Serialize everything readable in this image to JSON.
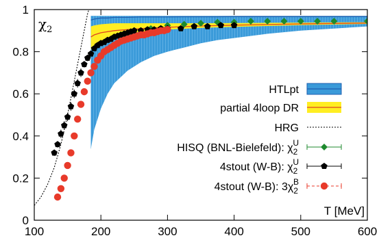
{
  "chart_data": {
    "type": "scatter",
    "panel_label": "χ2",
    "xlabel": "T [MeV]",
    "ylabel": "",
    "xlim": [
      100,
      600
    ],
    "ylim": [
      0,
      1
    ],
    "x_ticks": [
      100,
      200,
      300,
      400,
      500,
      600
    ],
    "y_ticks": [
      0,
      0.2,
      0.4,
      0.6,
      0.8,
      1
    ],
    "x_tick_labels": [
      "100",
      "200",
      "300",
      "400",
      "500",
      "600"
    ],
    "y_tick_labels": [
      "0",
      "0.2",
      "0.4",
      "0.6",
      "0.8",
      "1"
    ],
    "legend_position": "center-right",
    "series": [
      {
        "name": "HTLpt",
        "kind": "band",
        "fill": "#3a9ad9",
        "line": "#1f5fb0",
        "x": [
          185,
          190,
          200,
          210,
          220,
          240,
          260,
          280,
          300,
          325,
          350,
          375,
          400,
          450,
          500,
          550,
          600
        ],
        "upper": [
          0.97,
          0.97,
          0.97,
          0.97,
          0.97,
          0.97,
          0.97,
          0.97,
          0.97,
          0.97,
          0.97,
          0.97,
          0.97,
          0.97,
          0.97,
          0.97,
          0.97
        ],
        "lower": [
          0.34,
          0.43,
          0.53,
          0.6,
          0.65,
          0.71,
          0.75,
          0.78,
          0.8,
          0.82,
          0.84,
          0.855,
          0.865,
          0.885,
          0.9,
          0.91,
          0.92
        ],
        "central": [
          0.95,
          0.955,
          0.96,
          0.96,
          0.963,
          0.963,
          0.965,
          0.965,
          0.965,
          0.966,
          0.966,
          0.966,
          0.967,
          0.967,
          0.967,
          0.967,
          0.967
        ]
      },
      {
        "name": "partial 4loop DR",
        "kind": "band",
        "fill": "#ffee22",
        "line": "#dd4422",
        "x": [
          185,
          190,
          200,
          220,
          240,
          260,
          280,
          300,
          350,
          400,
          450,
          500,
          550,
          600
        ],
        "upper": [
          0.92,
          0.925,
          0.93,
          0.935,
          0.935,
          0.935,
          0.935,
          0.935,
          0.935,
          0.936,
          0.937,
          0.938,
          0.939,
          0.94
        ],
        "lower": [
          0.81,
          0.83,
          0.85,
          0.87,
          0.885,
          0.895,
          0.9,
          0.905,
          0.913,
          0.918,
          0.922,
          0.926,
          0.929,
          0.932
        ],
        "central": [
          0.87,
          0.88,
          0.89,
          0.9,
          0.905,
          0.91,
          0.913,
          0.916,
          0.922,
          0.926,
          0.929,
          0.932,
          0.934,
          0.936
        ]
      },
      {
        "name": "HRG",
        "kind": "line",
        "dashed": true,
        "color": "#000000",
        "x": [
          100,
          110,
          120,
          130,
          140,
          150,
          160,
          170,
          175,
          180,
          182
        ],
        "y": [
          0.07,
          0.11,
          0.17,
          0.25,
          0.36,
          0.5,
          0.66,
          0.82,
          0.9,
          0.98,
          1.0
        ]
      },
      {
        "name": "HISQ (BNL-Bielefeld): χ2U",
        "kind": "points",
        "marker": "diamond",
        "color": "#1e8a2e",
        "x": [
          275,
          300,
          325,
          350,
          375,
          400,
          425,
          450,
          475,
          500,
          525,
          550,
          600
        ],
        "y": [
          0.91,
          0.925,
          0.93,
          0.935,
          0.94,
          0.94,
          0.945,
          0.945,
          0.945,
          0.945,
          0.945,
          0.945,
          0.945
        ]
      },
      {
        "name": "4stout (W-B): χ2U",
        "kind": "points",
        "marker": "pentagon",
        "color": "#000000",
        "x": [
          130,
          135,
          140,
          145,
          150,
          155,
          160,
          165,
          170,
          175,
          180,
          185,
          190,
          195,
          200,
          205,
          210,
          215,
          220,
          225,
          230,
          235,
          240,
          245,
          250,
          260,
          270,
          280,
          290,
          300,
          320,
          340,
          360,
          380,
          400
        ],
        "y": [
          0.32,
          0.36,
          0.41,
          0.45,
          0.49,
          0.54,
          0.6,
          0.65,
          0.7,
          0.74,
          0.77,
          0.79,
          0.815,
          0.83,
          0.84,
          0.845,
          0.855,
          0.86,
          0.87,
          0.875,
          0.88,
          0.885,
          0.89,
          0.895,
          0.9,
          0.9,
          0.905,
          0.905,
          0.91,
          0.91,
          0.91,
          0.92,
          0.92,
          0.925,
          0.925
        ],
        "yerr": [
          0.015,
          0.015,
          0.02,
          0.02,
          0.02,
          0.02,
          0.02,
          0.02,
          0.02,
          0.015,
          0.015,
          0.01,
          0.01,
          0.01,
          0.01,
          0.01,
          0.01,
          0.01,
          0.01,
          0.01,
          0.01,
          0.01,
          0.01,
          0.01,
          0.01,
          0.01,
          0.01,
          0.01,
          0.01,
          0.01,
          0.01,
          0.01,
          0.01,
          0.01,
          0.01
        ]
      },
      {
        "name": "4stout (W-B): 3χ2B",
        "kind": "points",
        "marker": "circle",
        "color": "#e83a2a",
        "x": [
          135,
          140,
          145,
          150,
          155,
          160,
          165,
          170,
          175,
          180,
          185,
          190,
          195,
          200,
          205,
          210,
          215,
          220,
          225,
          230,
          235,
          240,
          245,
          250,
          255,
          260,
          265,
          270,
          275,
          280,
          285,
          290,
          295,
          300
        ],
        "y": [
          0.11,
          0.15,
          0.2,
          0.26,
          0.32,
          0.4,
          0.48,
          0.55,
          0.61,
          0.66,
          0.7,
          0.73,
          0.76,
          0.78,
          0.8,
          0.81,
          0.82,
          0.83,
          0.84,
          0.85,
          0.855,
          0.86,
          0.865,
          0.87,
          0.875,
          0.88,
          0.88,
          0.885,
          0.89,
          0.89,
          0.895,
          0.9,
          0.9,
          0.905
        ],
        "yerr": [
          0.01,
          0.01,
          0.01,
          0.01,
          0.01,
          0.01,
          0.01,
          0.01,
          0.01,
          0.01,
          0.01,
          0.01,
          0.01,
          0.01,
          0.01,
          0.01,
          0.01,
          0.01,
          0.01,
          0.01,
          0.01,
          0.01,
          0.01,
          0.01,
          0.01,
          0.01,
          0.01,
          0.01,
          0.01,
          0.01,
          0.01,
          0.01,
          0.01,
          0.01
        ]
      }
    ]
  }
}
